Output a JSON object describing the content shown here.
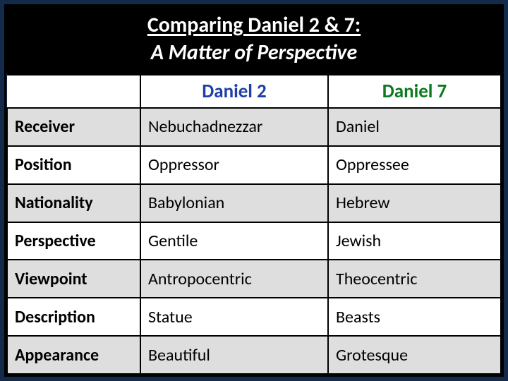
{
  "title": {
    "line1": "Comparing Daniel 2 & 7:",
    "line2": "A Matter of Perspective"
  },
  "table": {
    "header": {
      "blank": "",
      "col1": "Daniel 2",
      "col2": "Daniel 7"
    },
    "header_colors": {
      "col1": "#1f3fa8",
      "col2": "#0b7a1f"
    },
    "columns_width_pct": [
      27,
      38,
      35
    ],
    "row_stripe_colors": {
      "odd": "#dedede",
      "even": "#ffffff"
    },
    "border_color": "#000000",
    "rows": [
      {
        "label": "Receiver",
        "d2": "Nebuchadnezzar",
        "d7": "Daniel"
      },
      {
        "label": "Position",
        "d2": "Oppressor",
        "d7": "Oppressee"
      },
      {
        "label": "Nationality",
        "d2": "Babylonian",
        "d7": "Hebrew"
      },
      {
        "label": "Perspective",
        "d2": "Gentile",
        "d7": "Jewish"
      },
      {
        "label": "Viewpoint",
        "d2": "Antropocentric",
        "d7": "Theocentric"
      },
      {
        "label": "Description",
        "d2": "Statue",
        "d7": "Beasts"
      },
      {
        "label": "Appearance",
        "d2": "Beautiful",
        "d7": "Grotesque"
      }
    ]
  },
  "background_color": "#132a4a",
  "title_bg": "#000000",
  "title_text_color": "#ffffff",
  "font": {
    "family": "Calibri",
    "title_size_pt": 30,
    "header_size_pt": 27,
    "cell_size_pt": 24
  }
}
